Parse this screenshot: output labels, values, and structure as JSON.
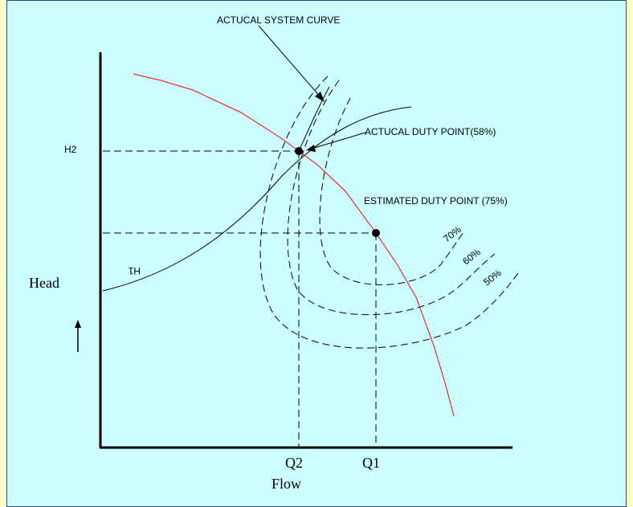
{
  "labels": {
    "actual_system_curve": "ACTUCAL SYSTEM CURVE",
    "actual_duty_point": "ACTUCAL DUTY POINT(58%)",
    "estimated_duty_point": "ESTIMATED DUTY POINT (75%)",
    "h2": "H2",
    "h1": "H1",
    "head": "Head",
    "flow": "Flow",
    "q2": "Q2",
    "q1": "Q1",
    "eff_70": "70%",
    "eff_60": "60%",
    "eff_50": "50%"
  },
  "colors": {
    "frame_border": "#2e4a8f",
    "frame_fill": "#ccffff",
    "page_bg": "#ffffcc",
    "pump_curve": "#ff0000"
  }
}
